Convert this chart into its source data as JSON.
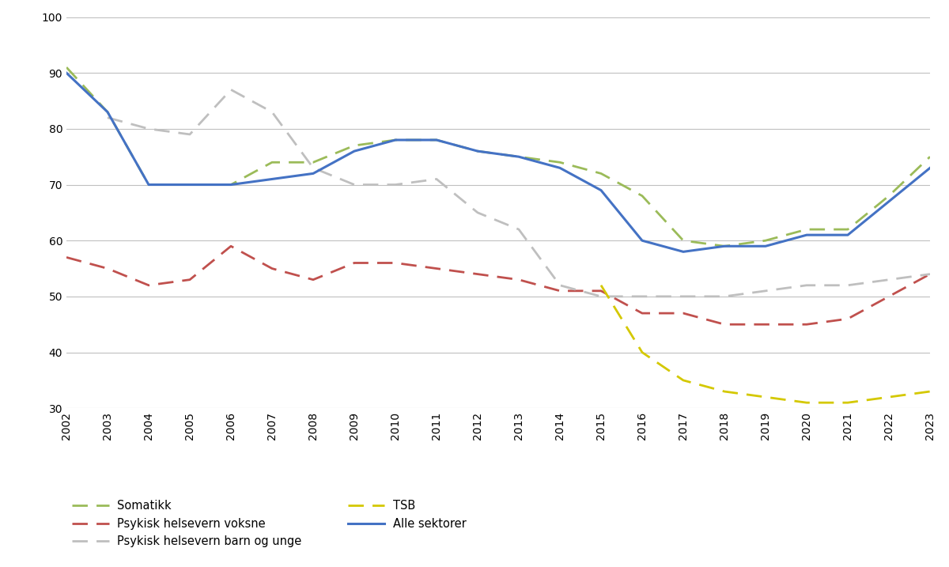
{
  "years": [
    2002,
    2003,
    2004,
    2005,
    2006,
    2007,
    2008,
    2009,
    2010,
    2011,
    2012,
    2013,
    2014,
    2015,
    2016,
    2017,
    2018,
    2019,
    2020,
    2021,
    2022,
    2023
  ],
  "somatikk": [
    91,
    83,
    70,
    70,
    70,
    74,
    74,
    77,
    78,
    78,
    76,
    75,
    74,
    72,
    68,
    60,
    59,
    60,
    62,
    62,
    68,
    75
  ],
  "psykisk_voksne": [
    57,
    55,
    52,
    53,
    59,
    55,
    53,
    56,
    56,
    55,
    54,
    53,
    51,
    51,
    47,
    47,
    45,
    45,
    45,
    46,
    50,
    54
  ],
  "psykisk_barn": [
    null,
    82,
    80,
    79,
    87,
    83,
    73,
    70,
    70,
    71,
    65,
    62,
    52,
    50,
    50,
    50,
    50,
    51,
    52,
    52,
    53,
    54
  ],
  "tsb": [
    null,
    null,
    null,
    null,
    null,
    null,
    null,
    null,
    null,
    null,
    null,
    null,
    null,
    52,
    40,
    35,
    33,
    32,
    31,
    31,
    32,
    33
  ],
  "alle_sektorer": [
    90,
    83,
    70,
    70,
    70,
    71,
    72,
    76,
    78,
    78,
    76,
    75,
    73,
    69,
    60,
    58,
    59,
    59,
    61,
    61,
    67,
    73
  ],
  "somatikk_color": "#9BBB59",
  "psykisk_voksne_color": "#C0504D",
  "psykisk_barn_color": "#BFBFBF",
  "tsb_color": "#D4C800",
  "alle_sektorer_color": "#4472C4",
  "ylim": [
    30,
    100
  ],
  "yticks": [
    30,
    40,
    50,
    60,
    70,
    80,
    90,
    100
  ],
  "legend_labels": [
    "Somatikk",
    "Psykisk helsevern voksne",
    "Psykisk helsevern barn og unge",
    "TSB",
    "Alle sektorer"
  ],
  "background_color": "#FFFFFF",
  "grid_color": "#C0C0C0"
}
